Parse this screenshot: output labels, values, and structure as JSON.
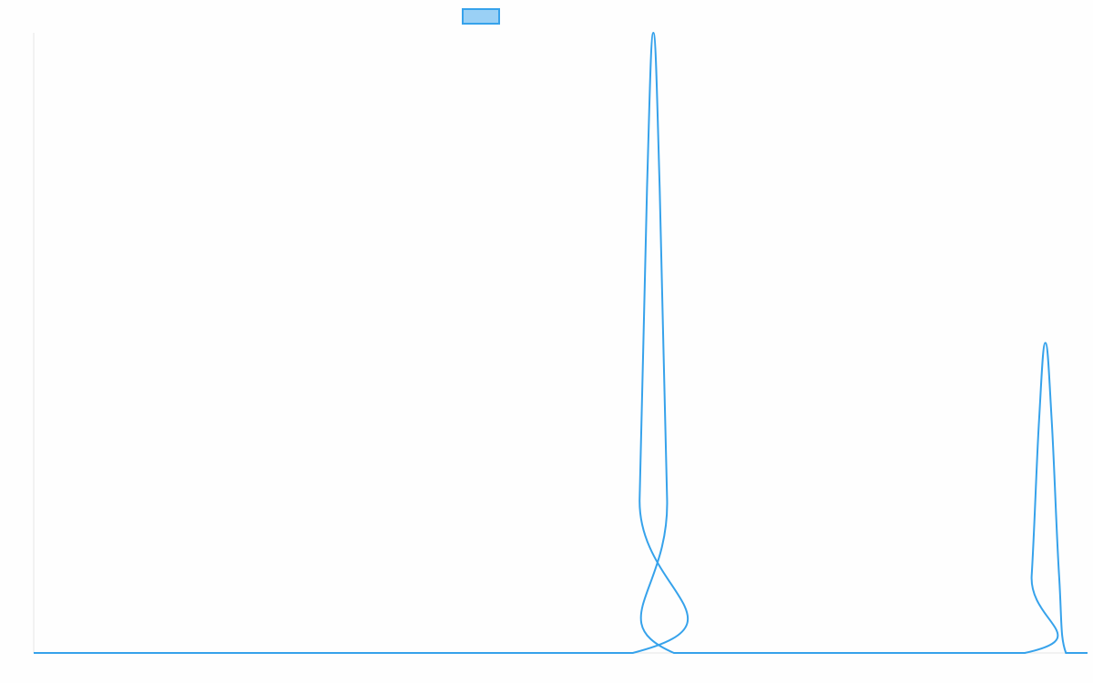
{
  "chart_data": {
    "type": "line",
    "title": "",
    "xlabel": "",
    "ylabel": "",
    "xlim": [
      0,
      100
    ],
    "ylim": [
      0,
      1
    ],
    "grid": false,
    "legend_placement": "top",
    "series": [
      {
        "color": "#36a2eb",
        "fill": "#9ad0f5",
        "x": [
          0,
          56.85,
          57.5,
          58.2,
          58.8,
          59.4,
          60.1,
          60.75,
          94.05,
          94.7,
          95.4,
          96.0,
          96.6,
          97.3,
          97.95,
          100
        ],
        "y": [
          0,
          0,
          0.25,
          0.75,
          1,
          0.75,
          0.25,
          0,
          0,
          0.125,
          0.375,
          0.5,
          0.375,
          0.125,
          0,
          0
        ]
      }
    ]
  }
}
